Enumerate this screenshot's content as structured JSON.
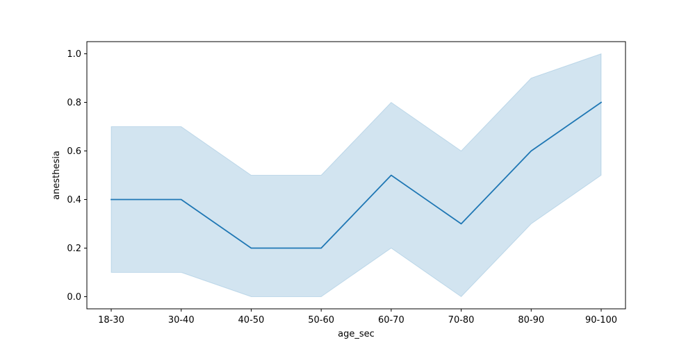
{
  "chart_data": {
    "type": "line",
    "title": "",
    "xlabel": "age_sec",
    "ylabel": "anesthesia",
    "categories": [
      "18-30",
      "30-40",
      "40-50",
      "50-60",
      "60-70",
      "70-80",
      "80-90",
      "90-100"
    ],
    "series": [
      {
        "name": "anesthesia",
        "values": [
          0.4,
          0.4,
          0.2,
          0.2,
          0.5,
          0.3,
          0.6,
          0.8
        ],
        "ci_lower": [
          0.1,
          0.1,
          0.0,
          0.0,
          0.2,
          0.0,
          0.3,
          0.5
        ],
        "ci_upper": [
          0.7,
          0.7,
          0.5,
          0.5,
          0.8,
          0.6,
          0.9,
          1.0
        ]
      }
    ],
    "yticks": [
      "0.0",
      "0.2",
      "0.4",
      "0.6",
      "0.8",
      "1.0"
    ],
    "ylim": [
      -0.05,
      1.05
    ],
    "grid": false,
    "legend": "none",
    "colors": {
      "line": "#1f77b4",
      "band": "#1f77b4"
    }
  }
}
